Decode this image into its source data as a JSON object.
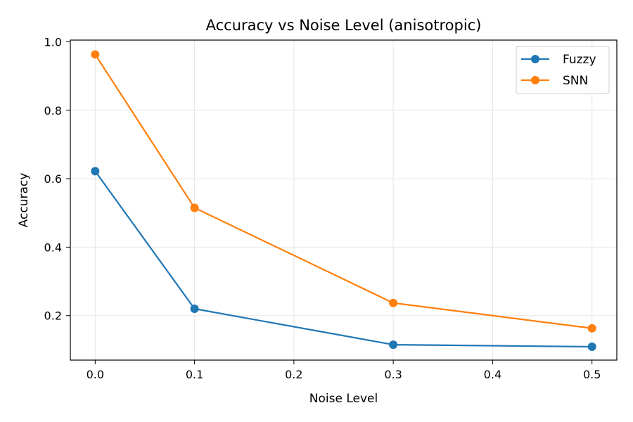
{
  "chart_data": {
    "type": "line",
    "title": "Accuracy vs Noise Level (anisotropic)",
    "xlabel": "Noise Level",
    "ylabel": "Accuracy",
    "x": [
      0.0,
      0.1,
      0.3,
      0.5
    ],
    "xlim": [
      -0.025,
      0.525
    ],
    "ylim": [
      0.07,
      1.005
    ],
    "xticks": [
      0.0,
      0.1,
      0.2,
      0.3,
      0.4,
      0.5
    ],
    "xtick_labels": [
      "0.0",
      "0.1",
      "0.2",
      "0.3",
      "0.4",
      "0.5"
    ],
    "yticks": [
      0.2,
      0.4,
      0.6,
      0.8,
      1.0
    ],
    "ytick_labels": [
      "0.2",
      "0.4",
      "0.6",
      "0.8",
      "1.0"
    ],
    "grid": true,
    "legend_position": "top-right",
    "series": [
      {
        "name": "Fuzzy",
        "color": "#1f77b4",
        "values": [
          0.622,
          0.22,
          0.115,
          0.109
        ]
      },
      {
        "name": "SNN",
        "color": "#ff7f0e",
        "values": [
          0.963,
          0.515,
          0.237,
          0.163
        ]
      }
    ]
  }
}
